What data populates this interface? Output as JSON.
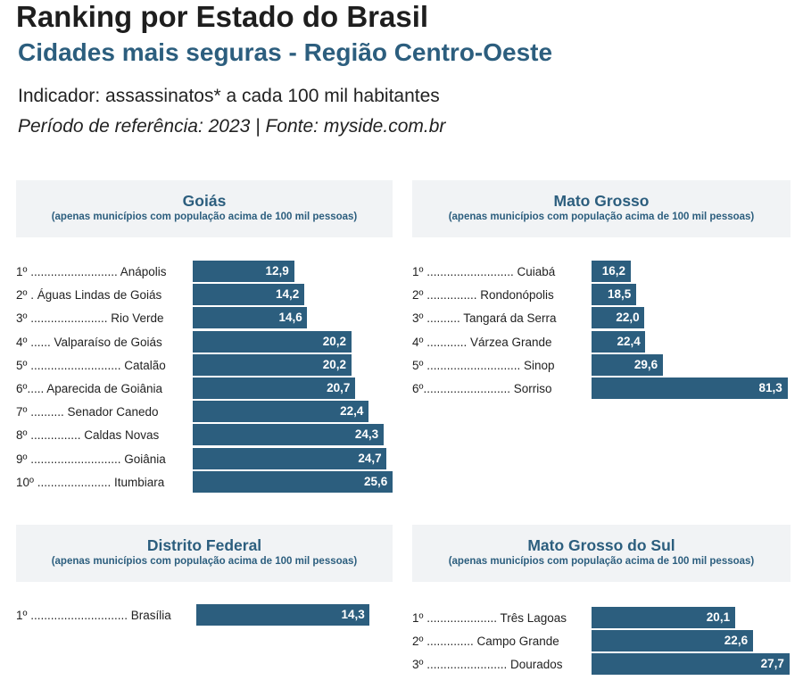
{
  "header": {
    "title": "Ranking por Estado do Brasil",
    "subtitle": "Cidades mais seguras - Região Centro-Oeste",
    "indicator": "Indicador: assassinatos* a cada 100 mil habitantes",
    "period": "Período de referência: 2023 | Fonte: myside.com.br"
  },
  "colors": {
    "bar": "#2c5e7e",
    "header_bg": "#f1f3f5",
    "accent_text": "#2c5e7e"
  },
  "chart_data": [
    {
      "type": "bar",
      "orientation": "horizontal",
      "title": "Goiás",
      "subtitle": "(apenas municípios com população acima de 100 mil pessoas)",
      "categories": [
        "1º .......................... Anápolis",
        "2º . Águas Lindas de Goiás",
        "3º ....................... Rio Verde",
        "4º ...... Valparaíso de Goiás",
        "5º ........................... Catalão",
        "6º..... Aparecida de Goiânia",
        "7º .......... Senador Canedo",
        "8º ............... Caldas Novas",
        "9º ........................... Goiânia",
        "10º ...................... Itumbiara"
      ],
      "values": [
        12.9,
        14.2,
        14.6,
        20.2,
        20.2,
        20.7,
        22.4,
        24.3,
        24.7,
        25.6
      ],
      "value_labels": [
        "12,9",
        "14,2",
        "14,6",
        "20,2",
        "20,2",
        "20,7",
        "22,4",
        "24,3",
        "24,7",
        "25,6"
      ]
    },
    {
      "type": "bar",
      "orientation": "horizontal",
      "title": "Mato Grosso",
      "subtitle": "(apenas municípios com população acima de 100 mil pessoas)",
      "categories": [
        "1º .......................... Cuiabá",
        "2º ............... Rondonópolis",
        "3º .......... Tangará da Serra",
        "4º ............ Várzea Grande",
        "5º ............................ Sinop",
        "6º.......................... Sorriso"
      ],
      "values": [
        16.2,
        18.5,
        22.0,
        22.4,
        29.6,
        81.3
      ],
      "value_labels": [
        "16,2",
        "18,5",
        "22,0",
        "22,4",
        "29,6",
        "81,3"
      ]
    },
    {
      "type": "bar",
      "orientation": "horizontal",
      "title": "Distrito Federal",
      "subtitle": "(apenas municípios com população acima de 100 mil pessoas)",
      "categories": [
        "1º ............................. Brasília"
      ],
      "values": [
        14.3
      ],
      "value_labels": [
        "14,3"
      ]
    },
    {
      "type": "bar",
      "orientation": "horizontal",
      "title": "Mato Grosso do Sul",
      "subtitle": "(apenas municípios com população acima de 100 mil pessoas)",
      "categories": [
        "1º ..................... Três Lagoas",
        "2º .............. Campo Grande",
        "3º ........................ Dourados"
      ],
      "values": [
        20.1,
        22.6,
        27.7
      ],
      "value_labels": [
        "20,1",
        "22,6",
        "27,7"
      ]
    }
  ]
}
